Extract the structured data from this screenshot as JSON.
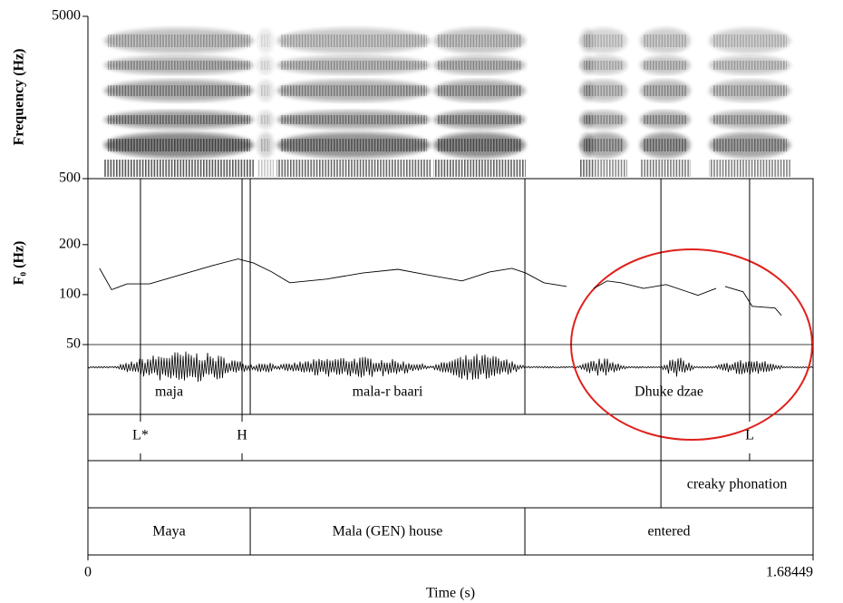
{
  "chart_data": {
    "type": "line",
    "x_label": "Time (s)",
    "xlim": [
      0,
      1.68449
    ],
    "xticks": [
      0,
      1.68449
    ],
    "spectrogram": {
      "y_label": "Frequency (Hz)",
      "ylim": [
        500,
        5000
      ],
      "yticks": [
        500,
        5000
      ]
    },
    "y_label": "F₀ (Hz)",
    "log_y": true,
    "ylim": [
      50,
      500
    ],
    "yticks": [
      50,
      100,
      200
    ],
    "color": "#000000",
    "x": [
      0.027,
      0.055,
      0.091,
      0.143,
      0.217,
      0.291,
      0.349,
      0.385,
      0.427,
      0.469,
      0.554,
      0.638,
      0.72,
      0.785,
      0.869,
      0.933,
      0.985,
      1.017,
      1.059,
      1.112,
      1.14,
      1.175,
      1.206,
      1.238,
      1.291,
      1.343,
      1.417,
      1.459,
      1.47,
      1.48,
      1.522,
      1.543,
      1.596,
      1.611
    ],
    "values": [
      144,
      107,
      116,
      116,
      132,
      150,
      164,
      155,
      137,
      118,
      124,
      135,
      142,
      132,
      121,
      137,
      144,
      135,
      118,
      112,
      null,
      109,
      121,
      118,
      109,
      115,
      99,
      109,
      null,
      112,
      104,
      85,
      83,
      75
    ],
    "tiers": [
      {
        "boundaries": [
          0.377,
          1.015
        ],
        "labels": [
          "maja",
          "mala-r baari",
          "Dhuke dzae"
        ]
      },
      {
        "points": [
          0.122,
          0.358,
          1.537
        ],
        "labels": [
          "L*",
          "H",
          "L"
        ]
      },
      {
        "boundaries": [
          1.331
        ],
        "labels": [
          null,
          "creaky phonation"
        ]
      },
      {
        "boundaries": [
          0.377,
          1.015
        ],
        "labels": [
          "Maya",
          "Mala (GEN) house",
          "entered"
        ]
      }
    ]
  }
}
